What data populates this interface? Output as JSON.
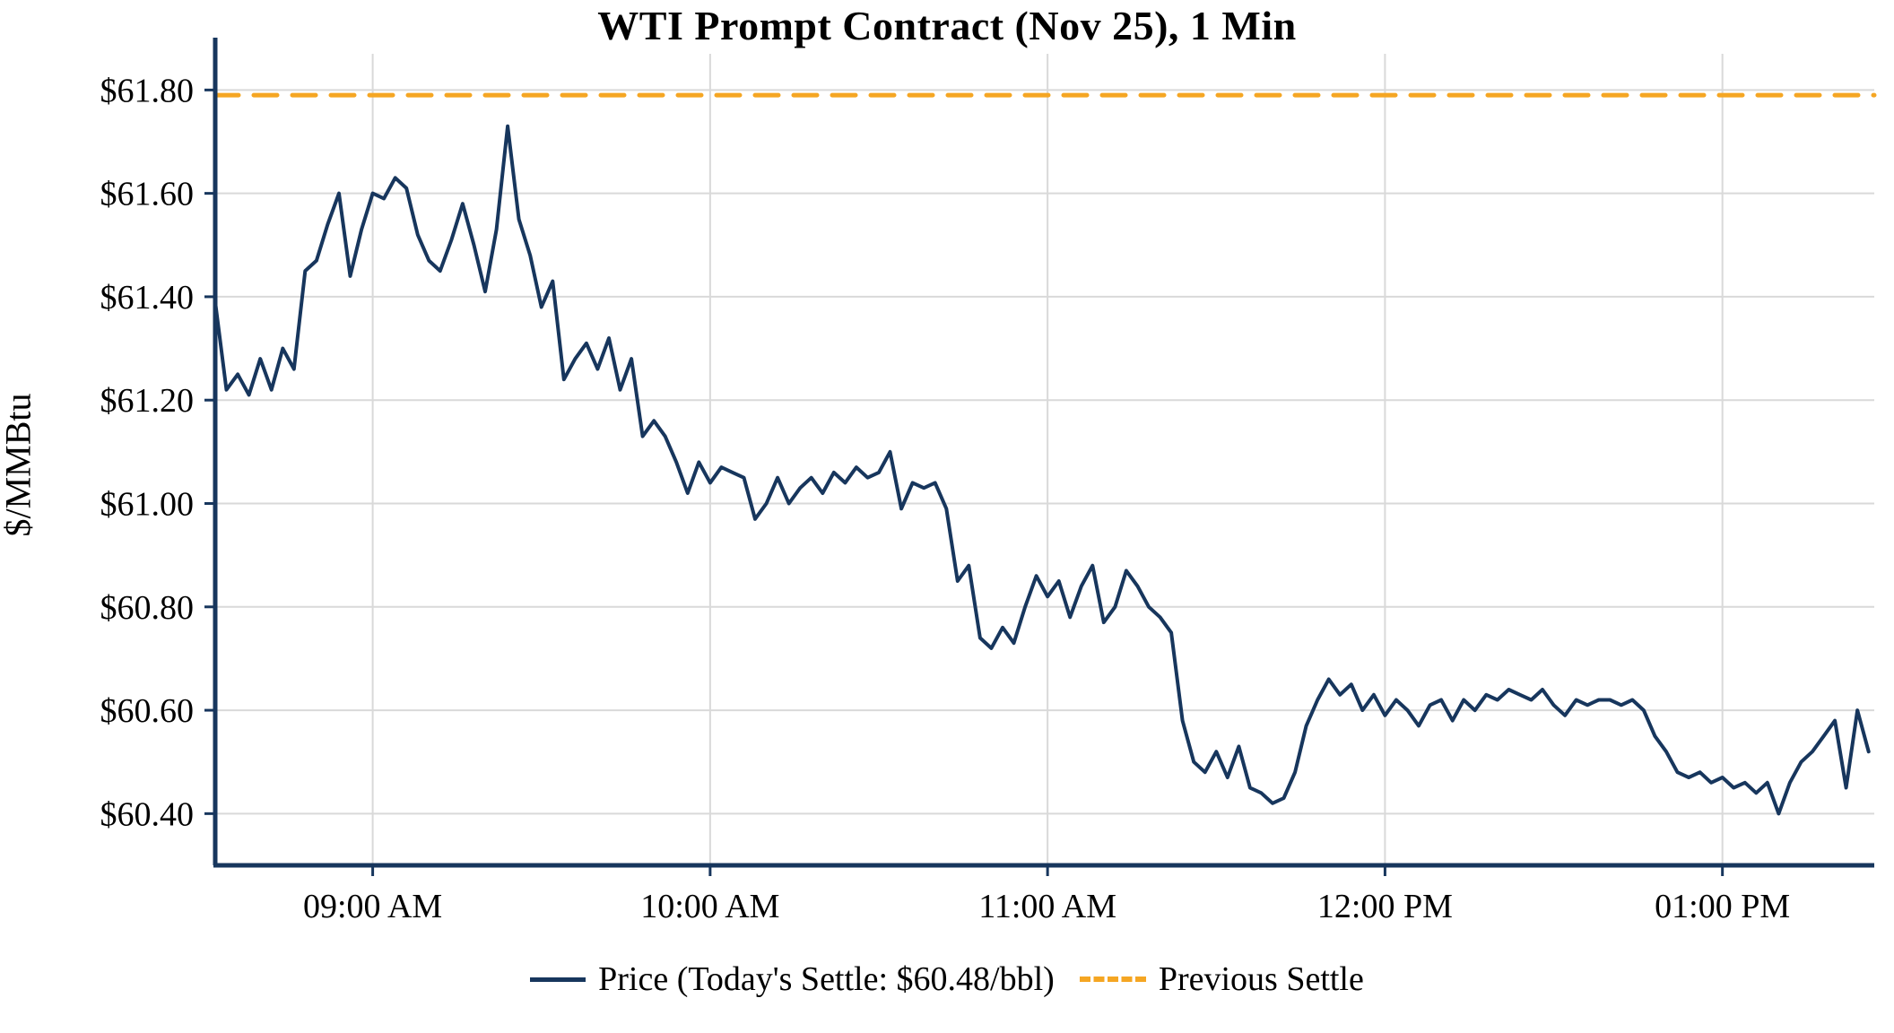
{
  "title": "WTI Prompt Contract (Nov 25), 1 Min",
  "y_axis_label": "$/MMBtu",
  "legend": {
    "price_label": "Price (Today's Settle: $60.48/bbl)",
    "prev_settle_label": "Previous Settle"
  },
  "colors": {
    "price_line": "#17365d",
    "axis": "#17365d",
    "previous_settle": "#f5a623",
    "grid": "#d9d9d9",
    "text": "#000000",
    "background": "#ffffff"
  },
  "chart_data": {
    "type": "line",
    "title": "WTI Prompt Contract (Nov 25), 1 Min",
    "xlabel": "",
    "ylabel": "$/MMBtu",
    "x_start_time": "08:32 AM",
    "x_interval_minutes": 2,
    "xlim_minutes": [
      0,
      295
    ],
    "ylim": [
      60.3,
      61.87
    ],
    "grid": true,
    "legend_position": "bottom",
    "x_tick_labels": [
      "09:00 AM",
      "10:00 AM",
      "11:00 AM",
      "12:00 PM",
      "01:00 PM"
    ],
    "x_tick_minutes_from_start": [
      28,
      88,
      148,
      208,
      268
    ],
    "y_tick_values": [
      60.4,
      60.6,
      60.8,
      61.0,
      61.2,
      61.4,
      61.6,
      61.8
    ],
    "y_tick_labels": [
      "$60.40",
      "$60.60",
      "$60.80",
      "$61.00",
      "$61.20",
      "$61.40",
      "$61.60",
      "$61.80"
    ],
    "previous_settle_value": 61.79,
    "todays_settle_value": 60.48,
    "series": [
      {
        "name": "Price",
        "values": [
          61.39,
          61.22,
          61.25,
          61.21,
          61.28,
          61.22,
          61.3,
          61.26,
          61.45,
          61.47,
          61.54,
          61.6,
          61.44,
          61.53,
          61.6,
          61.59,
          61.63,
          61.61,
          61.52,
          61.47,
          61.45,
          61.51,
          61.58,
          61.5,
          61.41,
          61.53,
          61.73,
          61.55,
          61.48,
          61.38,
          61.43,
          61.24,
          61.28,
          61.31,
          61.26,
          61.32,
          61.22,
          61.28,
          61.13,
          61.16,
          61.13,
          61.08,
          61.02,
          61.08,
          61.04,
          61.07,
          61.06,
          61.05,
          60.97,
          61.0,
          61.05,
          61.0,
          61.03,
          61.05,
          61.02,
          61.06,
          61.04,
          61.07,
          61.05,
          61.06,
          61.1,
          60.99,
          61.04,
          61.03,
          61.04,
          60.99,
          60.85,
          60.88,
          60.74,
          60.72,
          60.76,
          60.73,
          60.8,
          60.86,
          60.82,
          60.85,
          60.78,
          60.84,
          60.88,
          60.77,
          60.8,
          60.87,
          60.84,
          60.8,
          60.78,
          60.75,
          60.58,
          60.5,
          60.48,
          60.52,
          60.47,
          60.53,
          60.45,
          60.44,
          60.42,
          60.43,
          60.48,
          60.57,
          60.62,
          60.66,
          60.63,
          60.65,
          60.6,
          60.63,
          60.59,
          60.62,
          60.6,
          60.57,
          60.61,
          60.62,
          60.58,
          60.62,
          60.6,
          60.63,
          60.62,
          60.64,
          60.63,
          60.62,
          60.64,
          60.61,
          60.59,
          60.62,
          60.61,
          60.62,
          60.62,
          60.61,
          60.62,
          60.6,
          60.55,
          60.52,
          60.48,
          60.47,
          60.48,
          60.46,
          60.47,
          60.45,
          60.46,
          60.44,
          60.46,
          60.4,
          60.46,
          60.5,
          60.52,
          60.55,
          60.58,
          60.45,
          60.6,
          60.52
        ]
      },
      {
        "name": "Previous Settle",
        "style": "dashed-horizontal",
        "value": 61.79
      }
    ]
  }
}
